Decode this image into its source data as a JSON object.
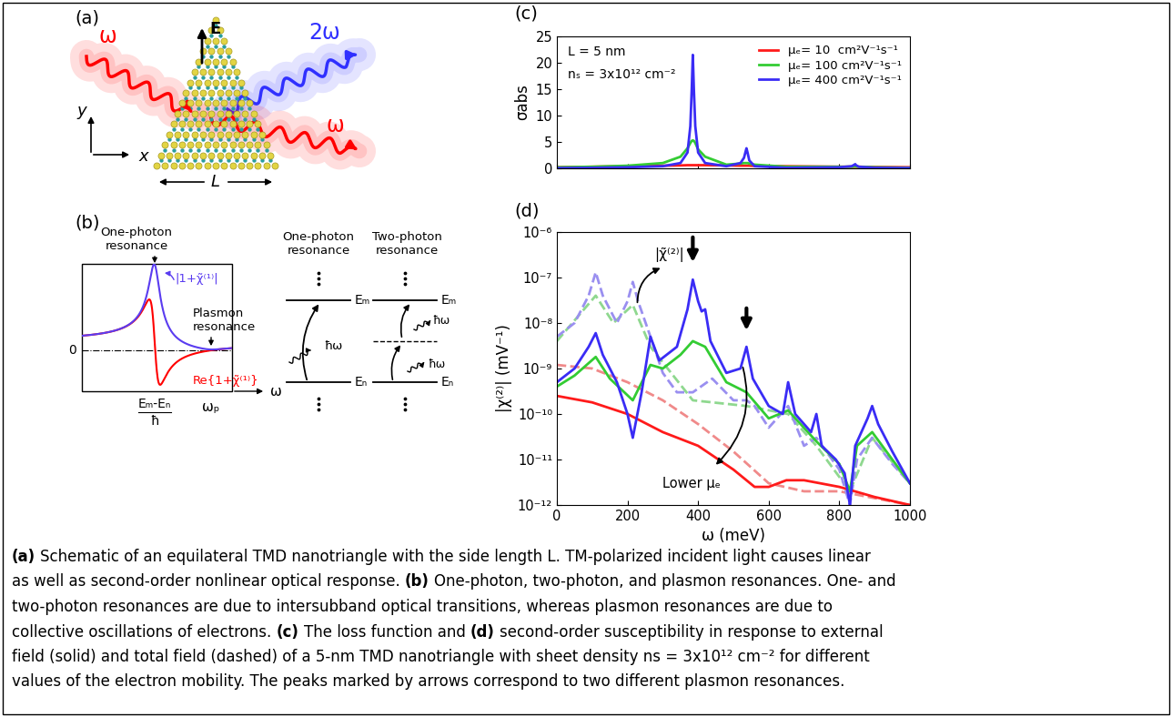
{
  "chart_data": [
    {
      "type": "line",
      "title": "(c)",
      "y_label": "σabs",
      "annotations": [
        "L = 5 nm",
        "nₛ = 3x10¹² cm⁻²"
      ],
      "x": [
        0,
        100,
        200,
        300,
        350,
        370,
        378,
        382,
        385,
        388,
        392,
        400,
        420,
        480,
        520,
        530,
        535,
        537,
        540,
        545,
        560,
        650,
        800,
        835,
        843,
        845,
        847,
        855,
        900,
        1000
      ],
      "series": [
        {
          "name": "μₑ= 10  cm²V⁻¹s⁻¹",
          "color": "#ff1a1a",
          "line_style": "solid",
          "values": [
            0.2,
            0.3,
            0.4,
            0.5,
            0.55,
            0.6,
            0.6,
            0.6,
            0.6,
            0.6,
            0.6,
            0.6,
            0.6,
            0.55,
            0.5,
            0.5,
            0.5,
            0.5,
            0.5,
            0.5,
            0.45,
            0.4,
            0.3,
            0.3,
            0.3,
            0.3,
            0.3,
            0.3,
            0.25,
            0.2
          ]
        },
        {
          "name": "μₑ= 100 cm²V⁻¹s⁻¹",
          "color": "#33cc33",
          "line_style": "solid",
          "values": [
            0.2,
            0.3,
            0.5,
            1,
            2.2,
            3.8,
            4.8,
            5.2,
            5.3,
            5.2,
            4.8,
            3.6,
            2.2,
            0.7,
            0.9,
            1.0,
            1.0,
            1.0,
            1.0,
            0.9,
            0.7,
            0.3,
            0.3,
            0.3,
            0.35,
            0.35,
            0.35,
            0.3,
            0.2,
            0.1
          ]
        },
        {
          "name": "μₑ= 400 cm²V⁻¹s⁻¹",
          "color": "#3a2cf5",
          "line_style": "solid",
          "values": [
            0.05,
            0.1,
            0.2,
            0.4,
            1.0,
            3,
            8,
            15,
            21.5,
            15,
            8,
            3,
            1,
            0.4,
            1,
            2,
            3.3,
            3.8,
            3,
            1.5,
            0.4,
            0.1,
            0.2,
            0.4,
            0.7,
            0.8,
            0.6,
            0.3,
            0.1,
            0.05
          ]
        }
      ],
      "xlim": [
        0,
        1000
      ],
      "xticks": [
        0,
        200,
        400,
        600,
        800,
        1000
      ],
      "ylim": [
        0,
        25
      ],
      "yticks": [
        0,
        5,
        10,
        15,
        20,
        25
      ],
      "tick_labels": "y",
      "legend": "upper right"
    },
    {
      "type": "line",
      "title": "(d)",
      "x_label": "ω (meV)",
      "y_label": "|χ⁽²⁾| (mV⁻¹)",
      "log": "y",
      "annotations": [
        "|χ̃⁽²⁾|",
        "Lower μₑ"
      ],
      "plasmon_peaks": [
        385,
        537
      ],
      "series": [
        {
          "color": "#f08a8a",
          "line_style": "dashed",
          "x": [
            0,
            100,
            200,
            300,
            400,
            500,
            600,
            700,
            800,
            1000
          ],
          "values": [
            1.2e-09,
            1e-09,
            5e-10,
            2e-10,
            6e-11,
            1.5e-11,
            3e-12,
            2e-12,
            2e-12,
            1e-12
          ]
        },
        {
          "color": "#8fd88f",
          "line_style": "dashed",
          "x": [
            0,
            110,
            160,
            215,
            265,
            385,
            537,
            655,
            735,
            830,
            893,
            1000
          ],
          "values": [
            4e-09,
            4e-08,
            1e-08,
            2.5e-08,
            3e-09,
            2e-10,
            1.5e-10,
            1e-10,
            2e-11,
            2e-12,
            3e-11,
            3e-12
          ]
        },
        {
          "color": "#9a8ff0",
          "line_style": "dashed",
          "x": [
            0,
            50,
            90,
            110,
            130,
            170,
            200,
            215,
            230,
            265,
            300,
            340,
            385,
            440,
            500,
            537,
            560,
            600,
            655,
            700,
            735,
            800,
            830,
            850,
            893,
            950,
            1000
          ],
          "values": [
            5e-09,
            1e-08,
            4e-08,
            1.3e-07,
            4e-08,
            1e-08,
            3e-08,
            8e-08,
            3e-08,
            5e-09,
            8e-10,
            3e-10,
            3e-10,
            6e-10,
            2e-10,
            2e-10,
            1.5e-10,
            5e-11,
            1.5e-10,
            2e-11,
            3e-11,
            6e-12,
            1e-12,
            1e-11,
            3e-11,
            8e-12,
            3e-12
          ]
        },
        {
          "color": "#ff1a1a",
          "line_style": "solid",
          "x": [
            0,
            100,
            200,
            300,
            400,
            500,
            560,
            600,
            650,
            700,
            800,
            900,
            1000
          ],
          "values": [
            2.5e-10,
            1.8e-10,
            1e-10,
            4e-11,
            2e-11,
            6e-12,
            2.5e-12,
            2.5e-12,
            3.5e-12,
            3.5e-12,
            2.5e-12,
            1.5e-12,
            1e-12
          ]
        },
        {
          "color": "#33cc33",
          "line_style": "solid",
          "x": [
            0,
            50,
            110,
            150,
            215,
            265,
            300,
            350,
            385,
            420,
            480,
            537,
            600,
            655,
            735,
            800,
            830,
            850,
            893,
            950,
            1000
          ],
          "values": [
            4e-10,
            7e-10,
            1.8e-09,
            6e-10,
            2e-10,
            1.2e-09,
            1e-09,
            2e-09,
            4e-09,
            3e-09,
            5e-10,
            3e-10,
            8e-11,
            1.2e-10,
            2.5e-11,
            8e-12,
            2e-12,
            2e-11,
            4e-11,
            1e-11,
            3e-12
          ]
        },
        {
          "color": "#3a2cf5",
          "line_style": "solid",
          "x": [
            0,
            50,
            90,
            110,
            130,
            170,
            200,
            215,
            240,
            265,
            290,
            340,
            370,
            385,
            400,
            410,
            420,
            435,
            480,
            520,
            537,
            555,
            600,
            640,
            655,
            675,
            720,
            735,
            750,
            790,
            815,
            830,
            845,
            880,
            893,
            910,
            950,
            1000
          ],
          "values": [
            5e-10,
            1e-09,
            3e-09,
            6e-09,
            2e-09,
            5e-10,
            1e-10,
            3e-11,
            3e-10,
            5e-09,
            1.5e-09,
            3e-09,
            2e-08,
            9e-08,
            3e-08,
            1.8e-08,
            2e-08,
            4e-09,
            8e-10,
            1e-09,
            3e-09,
            6e-10,
            1.5e-10,
            1e-10,
            5e-10,
            1e-10,
            4e-11,
            1e-10,
            2e-11,
            1e-11,
            5e-12,
            1e-12,
            2e-11,
            8e-11,
            1.5e-10,
            6e-11,
            1.5e-11,
            3e-12
          ]
        }
      ],
      "xlim": [
        0,
        1000
      ],
      "xticks": [
        0,
        200,
        400,
        600,
        800,
        1000
      ],
      "ylim": [
        1e-12,
        1e-06
      ],
      "yticks": [
        {
          "value": 1e-12,
          "label": "10⁻¹²"
        },
        {
          "value": 1e-11,
          "label": "10⁻¹¹"
        },
        {
          "value": 1e-10,
          "label": "10⁻¹⁰"
        },
        {
          "value": 1e-09,
          "label": "10⁻⁹"
        },
        {
          "value": 1e-08,
          "label": "10⁻⁸"
        },
        {
          "value": 1e-07,
          "label": "10⁻⁷"
        },
        {
          "value": 1e-06,
          "label": "10⁻⁶"
        }
      ]
    }
  ],
  "diagrams": {
    "a": {
      "label": "(a)",
      "incident": "ω",
      "second_harmonic": "2ω",
      "transmitted": "ω",
      "field": "E",
      "axis_y": "y",
      "axis_x": "x",
      "side": "L"
    },
    "b": {
      "label": "(b)",
      "plot": {
        "one_photon": "One-photon\nresonance",
        "abs_curve": "|1+χ̃⁽¹⁾|",
        "plasmon": "Plasmon\nresonance",
        "re_curve": "Re{1+χ̃⁽¹⁾}",
        "zero": "0",
        "transition": {
          "numerator": "Eₘ-Eₙ",
          "denominator": "ħ"
        },
        "plasma": "ωₚ",
        "axis": "ω"
      },
      "levels": [
        {
          "title": "One-photon\nresonance",
          "upper": "Eₘ",
          "lower": "Eₙ",
          "photon": "ħω"
        },
        {
          "title": "Two-photon\nresonance",
          "upper": "Eₘ",
          "lower": "Eₙ",
          "photon": "ħω"
        }
      ]
    }
  },
  "caption": [
    [
      "(a)",
      "Schematic of an equilateral TMD nanotriangle with the side length L. TM-polarized incident light causes linear"
    ],
    [
      "as well as second-order nonlinear optical response.",
      "(b)",
      "One-photon, two-photon, and plasmon resonances. One- and"
    ],
    [
      "two-photon resonances are due to intersubband optical transitions, whereas plasmon resonances are due to"
    ],
    [
      "collective oscillations of electrons.",
      "(c)",
      "The loss function and",
      "(d)",
      "second-order susceptibility in response to external"
    ],
    [
      "field (solid) and total field (dashed) of a 5-nm TMD nanotriangle with sheet density ns = 3x10¹² cm⁻² for different"
    ],
    [
      "values of the electron mobility. The peaks marked by arrows correspond to two different plasmon resonances."
    ]
  ]
}
